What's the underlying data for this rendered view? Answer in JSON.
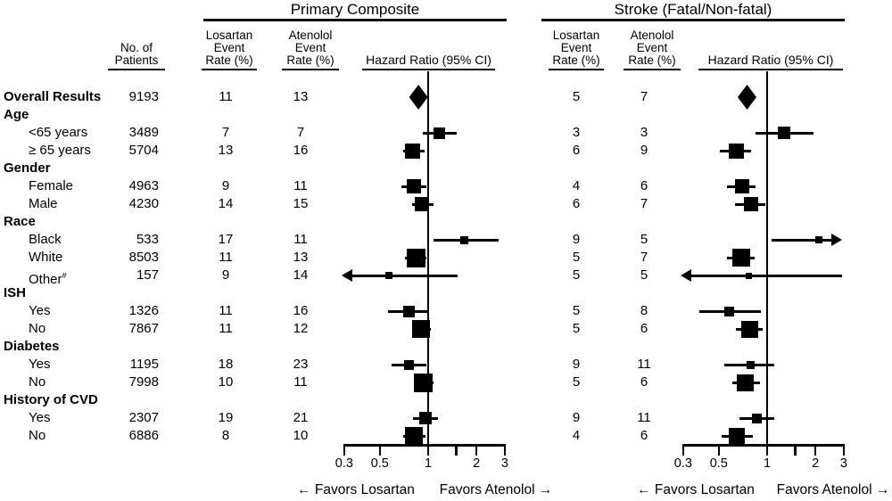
{
  "chart_data": {
    "type": "forest",
    "x_scale": "log",
    "x_ticks": [
      0.3,
      0.5,
      1,
      1.5,
      2,
      3
    ],
    "x_tick_labels": [
      "0.3",
      "0.5",
      "1",
      "",
      "2",
      "3"
    ],
    "patients_header": [
      "No. of",
      "Patients"
    ],
    "panels": [
      {
        "id": "pc",
        "title": "Primary Composite",
        "losartan_header": [
          "Losartan",
          "Event",
          "Rate (%)"
        ],
        "atenolol_header": [
          "Atenolol",
          "Event",
          "Rate (%)"
        ],
        "hazard_label": "Hazard Ratio (95% CI)",
        "favors_left": "← Favors Losartan",
        "favors_right": "Favors Atenolol →"
      },
      {
        "id": "st",
        "title": "Stroke (Fatal/Non-fatal)",
        "losartan_header": [
          "Losartan",
          "Event",
          "Rate (%)"
        ],
        "atenolol_header": [
          "Atenolol",
          "Event",
          "Rate (%)"
        ],
        "hazard_label": "Hazard Ratio (95% CI)",
        "favors_left": "← Favors Losartan",
        "favors_right": "Favors Atenolol →"
      }
    ],
    "rows": [
      {
        "label": "Overall Results",
        "group": true,
        "patients": "9193",
        "pc": {
          "los": "11",
          "aten": "13",
          "hr": 0.87,
          "lo": 0.76,
          "hi": 1.0,
          "shape": "diamond",
          "size": 21
        },
        "st": {
          "los": "5",
          "aten": "7",
          "hr": 0.75,
          "lo": 0.66,
          "hi": 0.86,
          "shape": "diamond",
          "size": 21
        }
      },
      {
        "label": "Age",
        "group": true
      },
      {
        "label": "<65 years",
        "patients": "3489",
        "pc": {
          "los": "7",
          "aten": "7",
          "hr": 1.17,
          "lo": 0.93,
          "hi": 1.5,
          "size": 13
        },
        "st": {
          "los": "3",
          "aten": "3",
          "hr": 1.28,
          "lo": 0.85,
          "hi": 1.94,
          "size": 14
        }
      },
      {
        "label": "≥ 65 years",
        "patients": "5704",
        "pc": {
          "los": "13",
          "aten": "16",
          "hr": 0.8,
          "lo": 0.7,
          "hi": 0.95,
          "size": 17
        },
        "st": {
          "los": "6",
          "aten": "9",
          "hr": 0.64,
          "lo": 0.51,
          "hi": 0.79,
          "size": 17
        }
      },
      {
        "label": "Gender",
        "group": true
      },
      {
        "label": "Female",
        "patients": "4963",
        "pc": {
          "los": "9",
          "aten": "11",
          "hr": 0.81,
          "lo": 0.68,
          "hi": 0.98,
          "size": 16
        },
        "st": {
          "los": "4",
          "aten": "6",
          "hr": 0.7,
          "lo": 0.56,
          "hi": 0.85,
          "size": 16
        }
      },
      {
        "label": "Male",
        "patients": "4230",
        "pc": {
          "los": "14",
          "aten": "15",
          "hr": 0.91,
          "lo": 0.79,
          "hi": 1.08,
          "size": 16
        },
        "st": {
          "los": "6",
          "aten": "7",
          "hr": 0.79,
          "lo": 0.63,
          "hi": 0.98,
          "size": 16
        }
      },
      {
        "label": "Race",
        "group": true
      },
      {
        "label": "Black",
        "patients": "533",
        "pc": {
          "los": "17",
          "aten": "11",
          "hr": 1.67,
          "lo": 1.08,
          "hi": 2.73,
          "size": 9
        },
        "st": {
          "los": "9",
          "aten": "5",
          "hr": 2.11,
          "lo": 1.07,
          "hi": 2.93,
          "size": 8,
          "arrow_hi": true
        }
      },
      {
        "label": "White",
        "patients": "8503",
        "pc": {
          "los": "11",
          "aten": "13",
          "hr": 0.84,
          "lo": 0.72,
          "hi": 0.97,
          "size": 21
        },
        "st": {
          "los": "5",
          "aten": "7",
          "hr": 0.69,
          "lo": 0.56,
          "hi": 0.84,
          "size": 20
        }
      },
      {
        "label": "Other",
        "sup": "#",
        "patients": "157",
        "pc": {
          "los": "9",
          "aten": "14",
          "hr": 0.57,
          "lo": 0.29,
          "hi": 1.53,
          "size": 8,
          "arrow_lo": true
        },
        "st": {
          "los": "5",
          "aten": "5",
          "hr": 0.77,
          "lo": 0.29,
          "hi": 2.93,
          "size": 7,
          "arrow_lo": true
        }
      },
      {
        "label": "ISH",
        "group": true
      },
      {
        "label": "Yes",
        "patients": "1326",
        "pc": {
          "los": "11",
          "aten": "16",
          "hr": 0.76,
          "lo": 0.56,
          "hi": 1.0,
          "size": 13
        },
        "st": {
          "los": "5",
          "aten": "8",
          "hr": 0.58,
          "lo": 0.38,
          "hi": 0.92,
          "size": 11
        }
      },
      {
        "label": "No",
        "patients": "7867",
        "pc": {
          "los": "11",
          "aten": "12",
          "hr": 0.9,
          "lo": 0.79,
          "hi": 1.04,
          "size": 20
        },
        "st": {
          "los": "5",
          "aten": "6",
          "hr": 0.78,
          "lo": 0.64,
          "hi": 0.94,
          "size": 19
        }
      },
      {
        "label": "Diabetes",
        "group": true
      },
      {
        "label": "Yes",
        "patients": "1195",
        "pc": {
          "los": "18",
          "aten": "23",
          "hr": 0.76,
          "lo": 0.59,
          "hi": 0.98,
          "size": 11
        },
        "st": {
          "los": "9",
          "aten": "11",
          "hr": 0.79,
          "lo": 0.54,
          "hi": 1.11,
          "size": 9
        }
      },
      {
        "label": "No",
        "patients": "7998",
        "pc": {
          "los": "10",
          "aten": "11",
          "hr": 0.93,
          "lo": 0.81,
          "hi": 1.08,
          "size": 21
        },
        "st": {
          "los": "5",
          "aten": "6",
          "hr": 0.73,
          "lo": 0.61,
          "hi": 0.9,
          "size": 19
        }
      },
      {
        "label": "History of CVD",
        "group": true
      },
      {
        "label": "Yes",
        "patients": "2307",
        "pc": {
          "los": "19",
          "aten": "21",
          "hr": 0.96,
          "lo": 0.8,
          "hi": 1.15,
          "size": 14
        },
        "st": {
          "los": "9",
          "aten": "11",
          "hr": 0.86,
          "lo": 0.67,
          "hi": 1.11,
          "size": 11
        }
      },
      {
        "label": "No",
        "patients": "6886",
        "pc": {
          "los": "8",
          "aten": "10",
          "hr": 0.81,
          "lo": 0.7,
          "hi": 0.96,
          "size": 20
        },
        "st": {
          "los": "4",
          "aten": "6",
          "hr": 0.65,
          "lo": 0.52,
          "hi": 0.81,
          "size": 18
        }
      }
    ],
    "colors": {
      "ink": "#000000",
      "background": "#ffffff"
    }
  }
}
